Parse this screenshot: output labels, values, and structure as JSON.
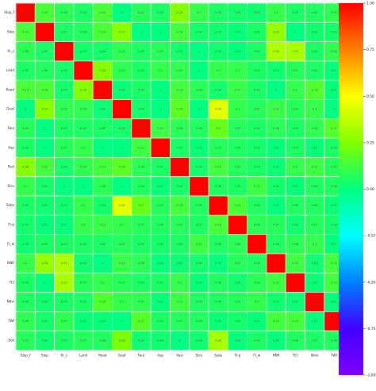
{
  "chart_data": {
    "type": "heatmap",
    "title": "",
    "xlabel": "",
    "ylabel": "",
    "labels": [
      "Slop_f",
      "Slop",
      "Pr_c",
      "Land",
      "Road",
      "Geaf",
      "Faul",
      "Asp",
      "Pasl",
      "Stru",
      "Subs",
      "Fl-p",
      "Fl_w",
      "RNR",
      "TCI",
      "Ndvi",
      "TWI",
      "Soil"
    ],
    "matrix": [
      [
        1,
        0.14,
        0.08,
        0.05,
        0.14,
        0,
        0.07,
        0.05,
        0.26,
        0.1,
        0.05,
        0.04,
        0.03,
        0.1,
        0.05,
        0.06,
        0.09,
        0.07
      ],
      [
        0.14,
        1,
        0.05,
        0.06,
        0.14,
        0.27,
        0,
        0,
        0.13,
        0.04,
        0.03,
        0.01,
        0.05,
        0.29,
        0,
        0.03,
        0.04,
        0.03
      ],
      [
        0.08,
        0.05,
        1,
        0.04,
        0.04,
        0.09,
        0.05,
        0.07,
        0.04,
        0,
        0.03,
        0.01,
        0.05,
        0.34,
        0.33,
        0.05,
        0.09,
        0.05
      ],
      [
        0.05,
        0.06,
        0.04,
        1,
        0.26,
        0.09,
        0.05,
        0.1,
        0.09,
        0,
        0.1,
        0.1,
        0.05,
        0.03,
        0.07,
        0.05,
        0.01,
        0.07
      ],
      [
        0.14,
        0.14,
        0.04,
        0.26,
        1,
        0.02,
        0.05,
        0,
        0.13,
        0.08,
        0.04,
        0.11,
        0.05,
        0,
        0.1,
        0.16,
        0.01,
        0.06
      ],
      [
        0,
        0.27,
        0.09,
        0.09,
        0.02,
        1,
        0.04,
        0,
        0.18,
        0,
        0.45,
        0.1,
        0.07,
        0.11,
        0.07,
        0.1,
        0,
        0.24
      ],
      [
        0.07,
        0,
        0.05,
        0.05,
        0.05,
        0.04,
        1,
        0.12,
        0.08,
        0.06,
        0.2,
        0.07,
        0.05,
        0.08,
        0.05,
        0.09,
        0.17,
        0.03
      ],
      [
        0.05,
        0,
        0.07,
        0.1,
        0,
        0,
        0.12,
        1,
        0.05,
        0.01,
        0.07,
        0.06,
        0.04,
        0.01,
        0.05,
        0.01,
        0.05,
        0.03
      ],
      [
        0.26,
        0.13,
        0.04,
        0.09,
        0.13,
        0.18,
        0.08,
        0.05,
        1,
        0.04,
        0.13,
        0.07,
        0.05,
        0.02,
        0.1,
        0.12,
        0.07,
        0
      ],
      [
        0.1,
        0.04,
        0,
        0,
        0.08,
        0,
        0.06,
        0.01,
        0.04,
        1,
        0.06,
        0.05,
        0.12,
        0.04,
        0.01,
        0.06,
        0.06,
        0.03
      ],
      [
        0.05,
        0.03,
        0.03,
        0.1,
        0.04,
        0.45,
        0.2,
        0.07,
        0.13,
        0.06,
        1,
        0.14,
        0.06,
        0.01,
        0.06,
        0.06,
        0.02,
        0.32
      ],
      [
        0.04,
        0.01,
        0.01,
        0.1,
        0.11,
        0.1,
        0.07,
        0.06,
        0.07,
        0.05,
        0.14,
        1,
        0.08,
        0.07,
        0.03,
        0.07,
        0.04,
        0.01
      ],
      [
        0.03,
        0.05,
        0.05,
        0.05,
        0.05,
        0.07,
        0.05,
        0.04,
        0.05,
        0.12,
        0.06,
        0.08,
        1,
        0.06,
        0.08,
        0.1,
        0.01,
        0.05
      ],
      [
        0.1,
        0.29,
        0.34,
        0.03,
        0,
        0.11,
        0.08,
        0.01,
        0.02,
        0.04,
        0.01,
        0.07,
        0.06,
        1,
        0.12,
        0.03,
        0.13,
        0.01
      ],
      [
        0.05,
        0,
        0.33,
        0.07,
        0.1,
        0.07,
        0.05,
        0.05,
        0.1,
        0.01,
        0.06,
        0.03,
        0.08,
        0.12,
        1,
        0.02,
        0.13,
        0.06
      ],
      [
        0.06,
        0.03,
        0.05,
        0.05,
        0.16,
        0.1,
        0.09,
        0.01,
        0.12,
        0.06,
        0.06,
        0.07,
        0.1,
        0.03,
        0.02,
        1,
        0.01,
        0.05
      ],
      [
        0.09,
        0.04,
        0.09,
        0.01,
        0.01,
        0,
        0.17,
        0.05,
        0.07,
        0.06,
        0.02,
        0.04,
        0.01,
        0.13,
        0.13,
        0.01,
        1,
        0.06
      ],
      [
        0.07,
        0.03,
        0.05,
        0.07,
        0.06,
        0.24,
        0.03,
        0.03,
        0,
        0.03,
        0.32,
        0.01,
        0.05,
        0.01,
        0.06,
        0.05,
        0.06,
        1
      ]
    ],
    "colorbar": {
      "range": [
        -1.0,
        1.0
      ],
      "ticks": [
        1.0,
        0.75,
        0.5,
        0.25,
        0.0,
        -0.25,
        -0.5,
        -0.75,
        -1.0
      ],
      "tick_labels": [
        "1.00",
        "0.75",
        "0.50",
        "0.25",
        "0.00",
        "-0.25",
        "-0.50",
        "-0.75",
        "-1.00"
      ],
      "colormap": "rainbow",
      "colors": [
        "#ff0000",
        "#ff8000",
        "#ffff00",
        "#80ff00",
        "#00ff80",
        "#00ffff",
        "#0080ff",
        "#4000ff",
        "#8000ff"
      ]
    },
    "grid": true,
    "cell_border_color": "#d8f5d0"
  }
}
